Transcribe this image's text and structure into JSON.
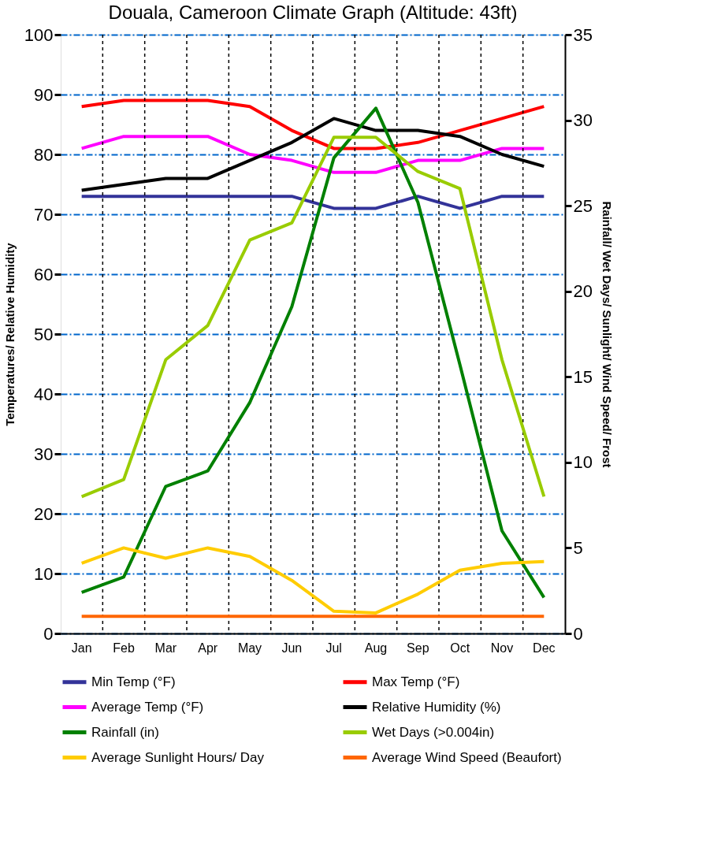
{
  "chart_data": {
    "type": "line",
    "title": "Douala, Cameroon Climate Graph (Altitude: 43ft)",
    "ylabel": "Temperatures/ Relative Humidity",
    "y2label": "Rainfall/ Wet Days/ Sunlight/ Wind Speed/ Frost",
    "categories": [
      "Jan",
      "Feb",
      "Mar",
      "Apr",
      "May",
      "Jun",
      "Jul",
      "Aug",
      "Sep",
      "Oct",
      "Nov",
      "Dec"
    ],
    "ylim": [
      0,
      100
    ],
    "yticks": [
      0,
      10,
      20,
      30,
      40,
      50,
      60,
      70,
      80,
      90,
      100
    ],
    "y2lim": [
      0,
      35
    ],
    "y2ticks": [
      0,
      5,
      10,
      15,
      20,
      25,
      30,
      35
    ],
    "grid": true,
    "legend": "bottom",
    "line_style": "solid",
    "series": [
      {
        "name": "Min Temp (°F)",
        "color": "#333399",
        "axis": "y",
        "values": [
          73,
          73,
          73,
          73,
          73,
          73,
          71,
          71,
          73,
          71,
          73,
          73
        ]
      },
      {
        "name": "Max Temp (°F)",
        "color": "#ff0000",
        "axis": "y",
        "values": [
          88,
          89,
          89,
          89,
          88,
          84,
          81,
          81,
          82,
          84,
          86,
          88
        ]
      },
      {
        "name": "Average Temp (°F)",
        "color": "#ff00ff",
        "axis": "y",
        "values": [
          81,
          83,
          83,
          83,
          80,
          79,
          77,
          77,
          79,
          79,
          81,
          81
        ]
      },
      {
        "name": "Relative Humidity (%)",
        "color": "#000000",
        "axis": "y",
        "values": [
          74,
          75,
          76,
          76,
          79,
          82,
          86,
          84,
          84,
          83,
          80,
          78
        ]
      },
      {
        "name": "Rainfall (in)",
        "color": "#008000",
        "axis": "y2",
        "values": [
          2.4,
          3.3,
          8.6,
          9.5,
          13.5,
          19.1,
          27.8,
          30.7,
          25.2,
          15.7,
          6.0,
          2.1
        ]
      },
      {
        "name": "Wet Days (>0.004in)",
        "color": "#99cc00",
        "axis": "y2",
        "values": [
          8,
          9,
          16,
          18,
          23,
          24,
          29,
          29,
          27,
          26,
          16,
          8
        ]
      },
      {
        "name": "Average Sunlight Hours/ Day",
        "color": "#ffcc00",
        "axis": "y2",
        "values": [
          4.1,
          5.0,
          4.4,
          5.0,
          4.5,
          3.1,
          1.3,
          1.2,
          2.3,
          3.7,
          4.1,
          4.2
        ]
      },
      {
        "name": "Average Wind Speed (Beaufort)",
        "color": "#ff6600",
        "axis": "y2",
        "values": [
          1,
          1,
          1,
          1,
          1,
          1,
          1,
          1,
          1,
          1,
          1,
          1
        ]
      }
    ]
  }
}
